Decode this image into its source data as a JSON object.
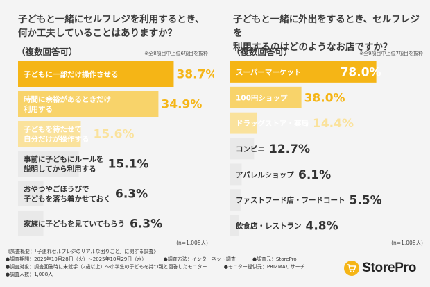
{
  "chart_data": [
    {
      "type": "bar",
      "title": "子どもと一緒にセルフレジを利用するとき、\n何か工夫していることはありますか？",
      "subtitle": "（複数回答可）",
      "note": "※全8項目中上位6項目を抜粋",
      "n_label": "(n=1,008人)",
      "xlim": [
        0,
        100
      ],
      "categories": [
        [
          "子どもに一部だけ操作させる"
        ],
        [
          "時間に余裕があるときだけ",
          "利用する"
        ],
        [
          "子どもを待たせて",
          "自分だけが操作する"
        ],
        [
          "事前に子どもにルールを",
          "説明してから利用する"
        ],
        [
          "おやつやごほうびで",
          "子どもを落ち着かせておく"
        ],
        [
          "家族に子どもを見ていてもらう"
        ]
      ],
      "values": [
        38.7,
        34.9,
        15.6,
        15.1,
        6.3,
        6.3
      ],
      "value_labels": [
        "38.7%",
        "34.9%",
        "15.6%",
        "15.1%",
        "6.3%",
        "6.3%"
      ],
      "bar_colors": [
        "#f5b516",
        "#f8d36a",
        "#fae29c",
        "#e9e9e9",
        "#e9e9e9",
        "#e9e9e9"
      ],
      "label_colors": [
        "#ffffff",
        "#ffffff",
        "#ffffff",
        "#333333",
        "#333333",
        "#333333"
      ],
      "value_colors": [
        "#f5b516",
        "#f5b516",
        "#fae29c",
        "#333333",
        "#333333",
        "#333333"
      ]
    },
    {
      "type": "bar",
      "title": "子どもと一緒に外出をするとき、セルフレジを\n利用するのはどのようなお店ですか？",
      "subtitle": "（複数回答可）",
      "note": "※全9項目中上位7項目を抜粋",
      "n_label": "(n=1,008人)",
      "xlim": [
        0,
        100
      ],
      "categories": [
        [
          "スーパーマーケット"
        ],
        [
          "100円ショップ"
        ],
        [
          "ドラッグストア・薬局"
        ],
        [
          "コンビニ"
        ],
        [
          "アパレルショップ"
        ],
        [
          "ファストフード店・フードコート"
        ],
        [
          "飲食店・レストラン"
        ]
      ],
      "values": [
        78.0,
        38.0,
        14.4,
        12.7,
        6.1,
        5.5,
        4.8
      ],
      "value_labels": [
        "78.0%",
        "38.0%",
        "14.4%",
        "12.7%",
        "6.1%",
        "5.5%",
        "4.8%"
      ],
      "bar_colors": [
        "#f5b516",
        "#f8d36a",
        "#fae29c",
        "#e9e9e9",
        "#e9e9e9",
        "#e9e9e9",
        "#e9e9e9"
      ],
      "label_colors": [
        "#ffffff",
        "#ffffff",
        "#ffffff",
        "#333333",
        "#333333",
        "#333333",
        "#333333"
      ],
      "value_colors": [
        "#ffffff",
        "#f5b516",
        "#fae29c",
        "#333333",
        "#333333",
        "#333333",
        "#333333"
      ]
    }
  ],
  "footer": {
    "overview": "《調査概要：「子連れセルフレジのリアルな困りごと」に関する調査》",
    "period": "●調査期間：2025年10月28日（火）〜2025年10月29日（水）",
    "method": "●調査方法：インターネット調査",
    "source": "●調査元：StorePro",
    "target": "●調査対象：調査回答時に未就学（2歳以上）〜小学生の子どもを持つ親と回答したモニター",
    "provider": "●モニター提供元：PRIZMAリサーチ",
    "count": "●調査人数：1,008人"
  },
  "logo": {
    "text": "StorePro",
    "icon": "cart-icon"
  }
}
